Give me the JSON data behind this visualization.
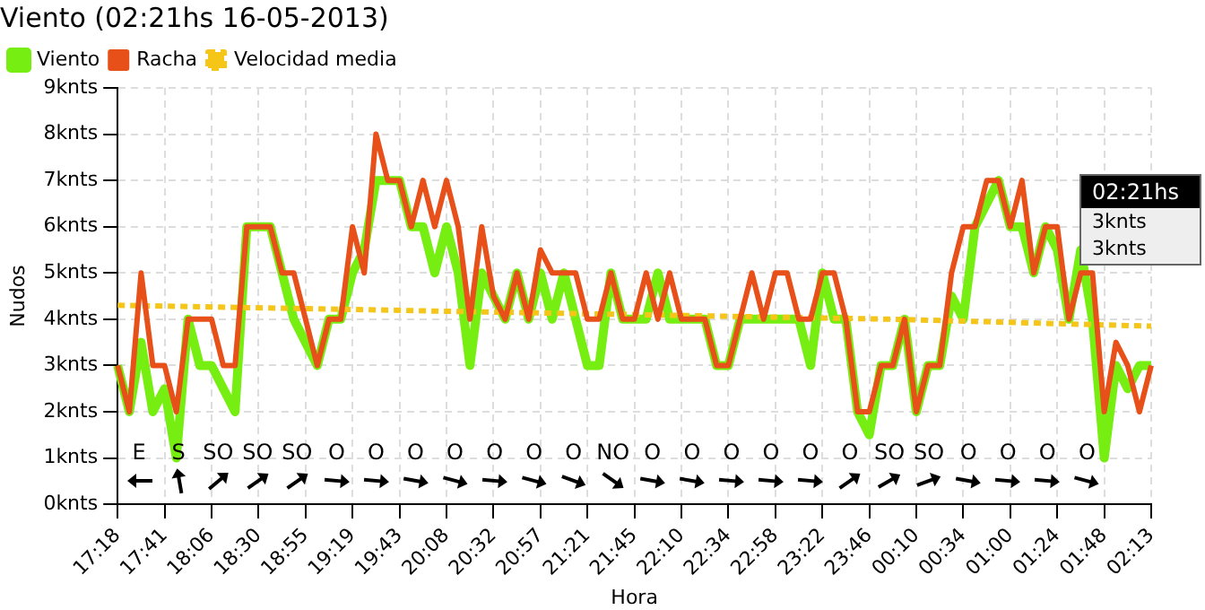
{
  "chart_data": {
    "type": "line",
    "title": "Viento (02:21hs 16-05-2013)",
    "xlabel": "Hora",
    "ylabel": "Nudos",
    "legend": "top left",
    "grid": true,
    "marker": "none",
    "categories": [
      "17:18",
      null,
      null,
      null,
      "17:41",
      null,
      null,
      null,
      "18:06",
      null,
      null,
      null,
      "18:30",
      null,
      null,
      null,
      "18:55",
      null,
      null,
      null,
      "19:19",
      null,
      null,
      null,
      "19:43",
      null,
      null,
      null,
      "20:08",
      null,
      null,
      null,
      "20:32",
      null,
      null,
      null,
      "20:57",
      null,
      null,
      null,
      "21:21",
      null,
      null,
      null,
      "21:45",
      null,
      null,
      null,
      "22:10",
      null,
      null,
      null,
      "22:34",
      null,
      null,
      null,
      "22:58",
      null,
      null,
      null,
      "23:22",
      null,
      null,
      null,
      "23:46",
      null,
      null,
      null,
      "00:10",
      null,
      null,
      null,
      "00:34",
      null,
      null,
      null,
      "01:00",
      null,
      null,
      null,
      "01:24",
      null,
      null,
      null,
      "01:48",
      null,
      null,
      null,
      "02:13"
    ],
    "series": [
      {
        "name": "Viento",
        "color": "#77ee11",
        "line_style": "solid",
        "values": [
          3,
          2,
          3.5,
          2,
          2.5,
          1,
          4,
          3,
          3,
          2.5,
          2,
          6,
          6,
          6,
          5,
          4,
          3.5,
          3,
          4,
          4,
          5,
          5.5,
          7,
          7,
          7,
          6,
          6,
          5,
          6,
          5,
          3,
          5,
          4.5,
          4,
          5,
          4,
          5,
          4,
          5,
          4,
          3,
          3,
          5,
          4,
          4,
          4,
          5,
          4,
          4,
          4,
          4,
          3,
          3,
          4,
          4,
          4,
          4,
          4,
          4,
          3,
          5,
          4,
          4,
          2,
          1.5,
          3,
          3,
          4,
          2,
          3,
          3,
          4.5,
          4,
          6,
          6.5,
          7,
          6,
          6,
          5,
          6,
          5.5,
          4,
          5.5,
          4,
          1,
          3,
          2.5,
          3,
          3
        ]
      },
      {
        "name": "Racha",
        "color": "#e8501a",
        "line_style": "solid",
        "values": [
          3,
          2,
          5,
          3,
          3,
          2,
          4,
          4,
          4,
          3,
          3,
          6,
          6,
          6,
          5,
          5,
          4,
          3,
          4,
          4,
          6,
          5,
          8,
          7,
          7,
          6,
          7,
          6,
          7,
          6,
          4,
          6,
          4.5,
          4,
          5,
          4,
          5.5,
          5,
          5,
          5,
          4,
          4,
          5,
          4,
          4,
          5,
          4,
          5,
          4,
          4,
          4,
          3,
          3,
          4,
          5,
          4,
          5,
          5,
          4,
          4,
          5,
          5,
          4,
          2,
          2,
          3,
          3,
          4,
          2,
          3,
          3,
          5,
          6,
          6,
          7,
          7,
          6,
          7,
          5,
          6,
          6,
          4,
          5,
          5,
          2,
          3.5,
          3,
          2,
          3
        ]
      },
      {
        "name": "Velocidad media",
        "color": "#f5c518",
        "line_style": "dotted",
        "values": [
          4.3,
          null,
          null,
          null,
          null,
          null,
          null,
          null,
          null,
          null,
          null,
          null,
          null,
          null,
          null,
          null,
          null,
          null,
          null,
          null,
          null,
          null,
          4.2,
          null,
          null,
          null,
          null,
          null,
          null,
          null,
          null,
          null,
          null,
          null,
          null,
          null,
          null,
          null,
          null,
          null,
          null,
          null,
          null,
          null,
          4.1,
          null,
          null,
          null,
          null,
          null,
          null,
          null,
          null,
          null,
          null,
          null,
          null,
          null,
          null,
          null,
          null,
          null,
          null,
          null,
          null,
          null,
          4.0,
          null,
          null,
          null,
          null,
          null,
          null,
          null,
          null,
          null,
          null,
          null,
          null,
          null,
          null,
          null,
          null,
          null,
          null,
          null,
          null,
          null,
          3.85
        ]
      }
    ],
    "ylim": [
      0,
      9
    ],
    "yticks": [
      {
        "value": 0,
        "label": "0knts"
      },
      {
        "value": 1,
        "label": "1knts"
      },
      {
        "value": 2,
        "label": "2knts"
      },
      {
        "value": 3,
        "label": "3knts"
      },
      {
        "value": 4,
        "label": "4knts"
      },
      {
        "value": 5,
        "label": "5knts"
      },
      {
        "value": 6,
        "label": "6knts"
      },
      {
        "value": 7,
        "label": "7knts"
      },
      {
        "value": 8,
        "label": "8knts"
      },
      {
        "value": 9,
        "label": "9knts"
      }
    ],
    "annotations": [
      "E",
      "S",
      "SO",
      "SO",
      "SO",
      "O",
      "O",
      "O",
      "O",
      "O",
      "O",
      "O",
      "NO",
      "O",
      "O",
      "O",
      "O",
      "O",
      "O",
      "SO",
      "SO",
      "O",
      "O",
      "O",
      "O",
      "02:21hs",
      "3knts",
      "3knts"
    ]
  }
}
